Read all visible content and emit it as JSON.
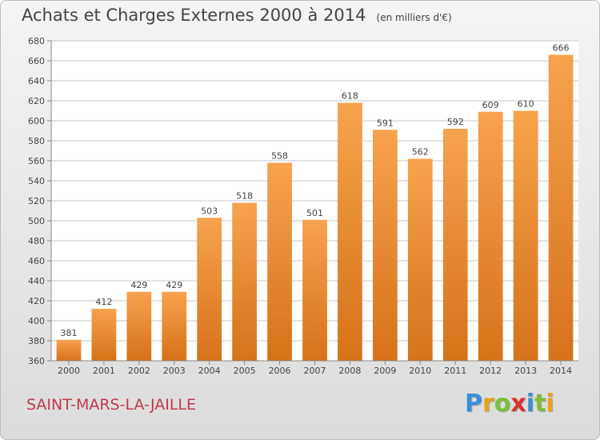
{
  "title": "Achats et Charges Externes 2000 à 2014",
  "subtitle": "(en milliers d'€)",
  "place": "SAINT-MARS-LA-JAILLE",
  "logo": {
    "text": "Proxiti",
    "letters": [
      {
        "ch": "P",
        "color": "#3a8fd6"
      },
      {
        "ch": "r",
        "color": "#e8a21b"
      },
      {
        "ch": "o",
        "color": "#7bbf3a"
      },
      {
        "ch": "x",
        "color": "#d9342b"
      },
      {
        "ch": "i",
        "color": "#3a8fd6"
      },
      {
        "ch": "t",
        "color": "#7bbf3a"
      },
      {
        "ch": "i",
        "color": "#e8a21b"
      }
    ]
  },
  "colors": {
    "bar_top": "#f7a24d",
    "bar_bottom": "#d6721a",
    "text": "#444444",
    "place": "#c0394b",
    "grid": "#c8c8c8",
    "plot_bg": "#ffffff"
  },
  "chart_data": {
    "type": "bar",
    "categories": [
      "2000",
      "2001",
      "2002",
      "2003",
      "2004",
      "2005",
      "2006",
      "2007",
      "2008",
      "2009",
      "2010",
      "2011",
      "2012",
      "2013",
      "2014"
    ],
    "values": [
      381,
      412,
      429,
      429,
      503,
      518,
      558,
      501,
      618,
      591,
      562,
      592,
      609,
      610,
      666
    ],
    "ylim": [
      360,
      680
    ],
    "yticks": [
      360,
      380,
      400,
      420,
      440,
      460,
      480,
      500,
      520,
      540,
      560,
      580,
      600,
      620,
      640,
      660,
      680
    ],
    "grid": true,
    "data_labels": true
  }
}
